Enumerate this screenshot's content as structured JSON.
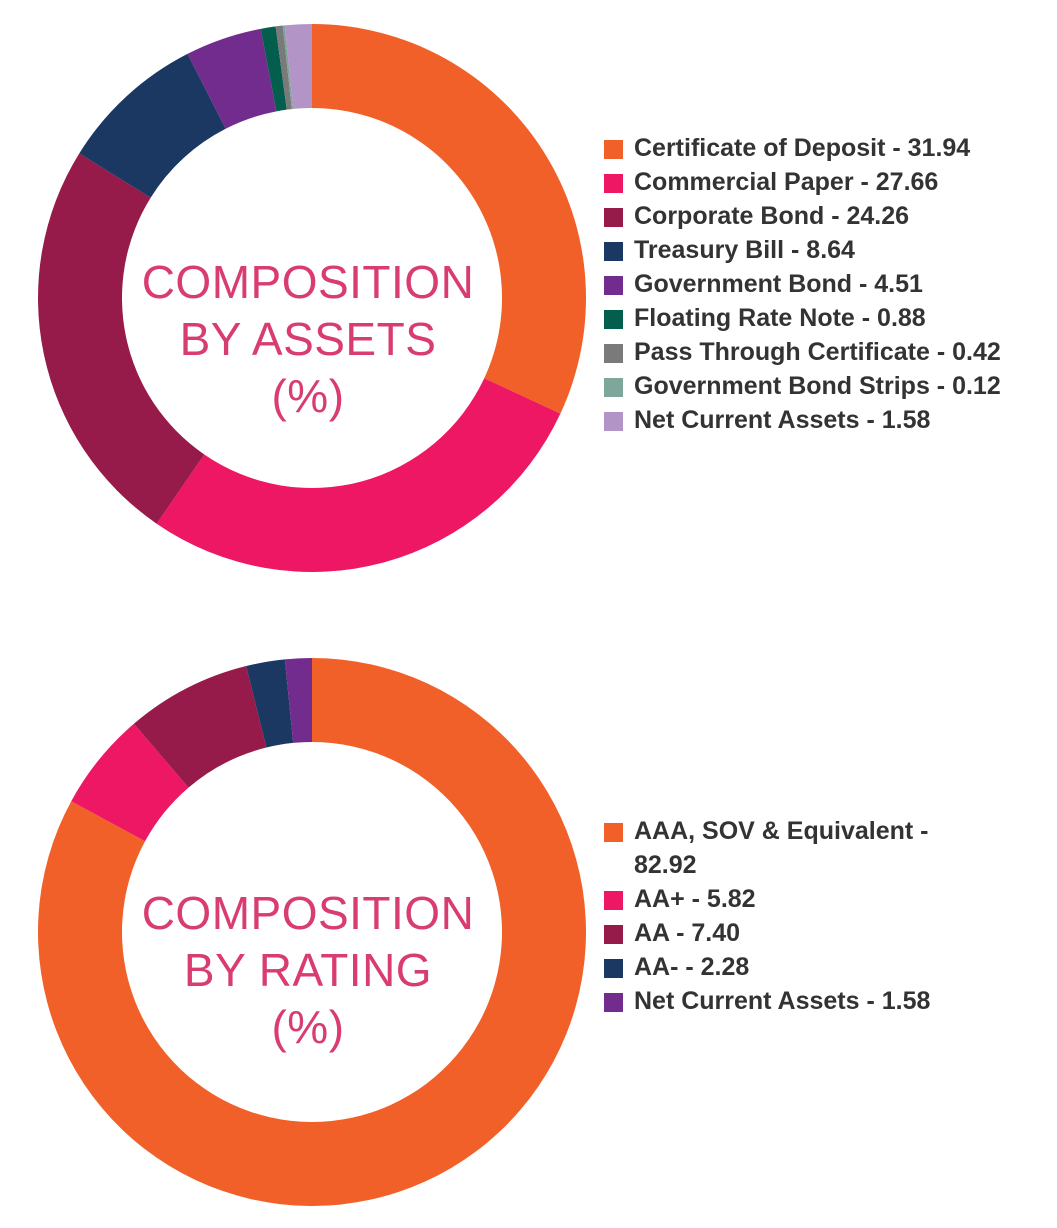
{
  "chart_data": [
    {
      "type": "pie",
      "title_lines": [
        "COMPOSITION",
        "BY ASSETS",
        "(%)"
      ],
      "slices": [
        {
          "label": "Certificate of Deposit - 31.94",
          "value": 31.94,
          "color": "#f26029"
        },
        {
          "label": "Commercial Paper - 27.66",
          "value": 27.66,
          "color": "#ed1763"
        },
        {
          "label": "Corporate Bond - 24.26",
          "value": 24.26,
          "color": "#961b4a"
        },
        {
          "label": "Treasury Bill - 8.64",
          "value": 8.64,
          "color": "#1b3862"
        },
        {
          "label": "Government Bond - 4.51",
          "value": 4.51,
          "color": "#712c8e"
        },
        {
          "label": "Floating Rate Note - 0.88",
          "value": 0.88,
          "color": "#045e4e"
        },
        {
          "label": "Pass Through Certificate - 0.42",
          "value": 0.42,
          "color": "#7a7a7a"
        },
        {
          "label": "Government Bond Strips - 0.12",
          "value": 0.12,
          "color": "#7fa69b"
        },
        {
          "label": "Net Current Assets - 1.58",
          "value": 1.58,
          "color": "#b394c6"
        }
      ],
      "legend_position": "right"
    },
    {
      "type": "pie",
      "title_lines": [
        "COMPOSITION",
        "BY RATING",
        "(%)"
      ],
      "slices": [
        {
          "label": "AAA, SOV & Equivalent - 82.92",
          "value": 82.92,
          "color": "#f26029"
        },
        {
          "label": "AA+ - 5.82",
          "value": 5.82,
          "color": "#ed1763"
        },
        {
          "label": "AA - 7.40",
          "value": 7.4,
          "color": "#961b4a"
        },
        {
          "label": "AA- - 2.28",
          "value": 2.28,
          "color": "#1b3862"
        },
        {
          "label": "Net Current Assets - 1.58",
          "value": 1.58,
          "color": "#712c8e"
        }
      ],
      "legend_position": "right"
    }
  ]
}
